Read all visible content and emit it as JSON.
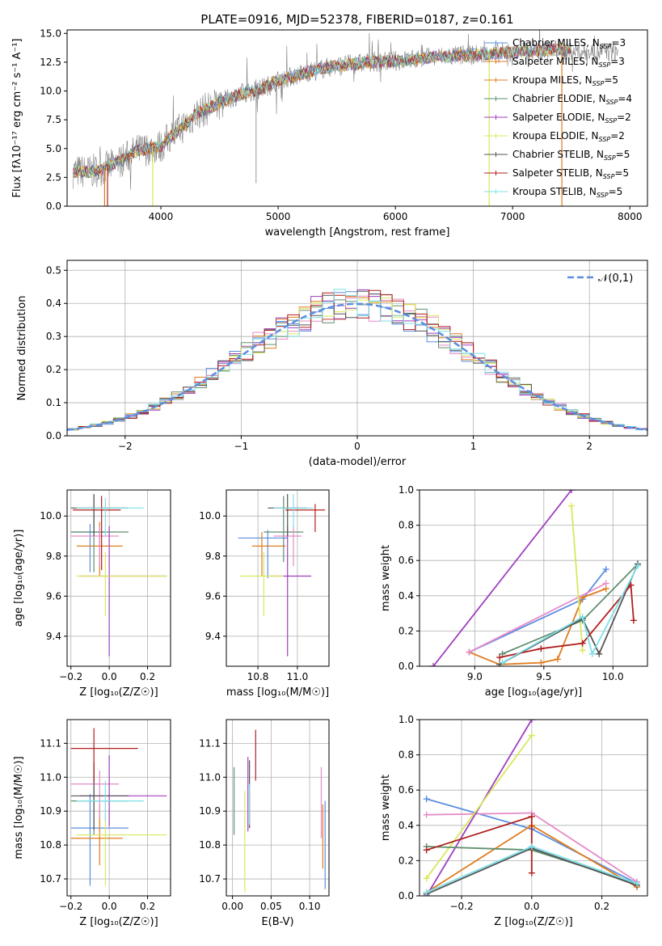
{
  "figure_title": "PLATE=0916, MJD=52378, FIBERID=0187, z=0.161",
  "colors": {
    "blue": "#5b8ee0",
    "orange": "#e07c1e",
    "green": "#4a9a57",
    "pink": "#e58cc8",
    "gray": "#7f7f7f",
    "purple": "#9f3fbf",
    "yellow": "#d9e85c",
    "darkgray": "#555555",
    "red": "#b01f1f",
    "cyan": "#7fe0e8",
    "greenish": "#5f8f6f"
  },
  "chart_data": [
    {
      "id": "spectrum",
      "type": "line",
      "xlabel": "wavelength [Angstrom, rest frame]",
      "ylabel": "Flux [fλ10⁻¹⁷ erg cm⁻² s⁻¹ A⁻¹]",
      "xlim": [
        3200,
        8150
      ],
      "ylim": [
        0,
        15.3
      ],
      "xticks": [
        4000,
        5000,
        6000,
        7000,
        8000
      ],
      "yticks": [
        0.0,
        2.5,
        5.0,
        7.5,
        10.0,
        12.5,
        15.0
      ],
      "ytick_labels": [
        "0.0",
        "2.5",
        "5.0",
        "7.5",
        "10.0",
        "12.5",
        "15.0"
      ],
      "grid": false,
      "legend_position": "top-right",
      "series": [
        {
          "name": "Chabrier MILES, N_SSP=3",
          "color": "#5b8ee0"
        },
        {
          "name": "Salpeter MILES, N_SSP=3",
          "color": "#e07c1e"
        },
        {
          "name": "Kroupa MILES, N_SSP=5",
          "color": "#e07c1e"
        },
        {
          "name": "Chabrier ELODIE, N_SSP=4",
          "color": "#5f8f6f"
        },
        {
          "name": "Salpeter ELODIE, N_SSP=2",
          "color": "#9f3fbf"
        },
        {
          "name": "Kroupa ELODIE, N_SSP=2",
          "color": "#d9e85c"
        },
        {
          "name": "Chabrier STELIB, N_SSP=5",
          "color": "#555555"
        },
        {
          "name": "Salpeter STELIB, N_SSP=5",
          "color": "#b01f1f"
        },
        {
          "name": "Kroupa STELIB, N_SSP=5",
          "color": "#7fe0e8"
        }
      ],
      "continuum": {
        "x": [
          3250,
          3400,
          3500,
          3600,
          3700,
          3800,
          3900,
          4000,
          4100,
          4200,
          4300,
          4400,
          4500,
          4600,
          4700,
          4800,
          4900,
          5000,
          5200,
          5400,
          5600,
          5800,
          6000,
          6200,
          6400,
          6600,
          6800,
          7000,
          7200,
          7400,
          7600,
          7800
        ],
        "y": [
          3.0,
          3.0,
          3.2,
          3.6,
          4.2,
          4.8,
          5.0,
          5.2,
          6.2,
          7.0,
          8.0,
          8.5,
          9.0,
          9.4,
          9.8,
          10.0,
          10.4,
          10.9,
          11.5,
          12.0,
          12.3,
          12.5,
          12.6,
          12.8,
          13.0,
          13.1,
          13.2,
          13.4,
          13.5,
          13.6,
          13.4,
          13.4
        ]
      }
    },
    {
      "id": "residuals",
      "type": "bar",
      "xlabel": "(data-model)/error",
      "ylabel": "Normed distribution",
      "xlim": [
        -2.5,
        2.5
      ],
      "ylim": [
        0,
        0.53
      ],
      "xticks": [
        -2,
        -1,
        0,
        1,
        2
      ],
      "xtick_labels": [
        "−2",
        "−1",
        "0",
        "1",
        "2"
      ],
      "yticks": [
        0.0,
        0.1,
        0.2,
        0.3,
        0.4,
        0.5
      ],
      "ytick_labels": [
        "0.0",
        "0.1",
        "0.2",
        "0.3",
        "0.4",
        "0.5"
      ],
      "grid": true,
      "legend": "𝒩(0,1)",
      "legend_position": "top-right",
      "bin_width": 0.1
    },
    {
      "id": "age_vs_Z",
      "type": "scatter",
      "xlabel": "Z [log₁₀(Z/Z☉)]",
      "ylabel": "age  [log₁₀(age/yr)]",
      "xlim": [
        -0.22,
        0.32
      ],
      "ylim": [
        9.25,
        10.13
      ],
      "xticks": [
        -0.2,
        0.0,
        0.2
      ],
      "xtick_labels": [
        "−0.2",
        "0.0",
        "0.2"
      ],
      "yticks": [
        9.4,
        9.6,
        9.8,
        10.0
      ],
      "ytick_labels": [
        "9.4",
        "9.6",
        "9.8",
        "10.0"
      ],
      "grid": true,
      "points": [
        {
          "color": "#5b8ee0",
          "x": -0.1,
          "xerr": [
            0.1,
            0.08
          ],
          "y": 9.92,
          "yerr": [
            0.2,
            0.04
          ]
        },
        {
          "color": "#e07c1e",
          "x": -0.05,
          "xerr": [
            0.12,
            0.12
          ],
          "y": 9.85,
          "yerr": [
            0.15,
            0.12
          ]
        },
        {
          "color": "#5f8f6f",
          "x": -0.08,
          "xerr": [
            0.12,
            0.18
          ],
          "y": 9.92,
          "yerr": [
            0.2,
            0.18
          ]
        },
        {
          "color": "#e58cc8",
          "x": -0.05,
          "xerr": [
            0.15,
            0.1
          ],
          "y": 9.9,
          "yerr": [
            0.15,
            0.05
          ]
        },
        {
          "color": "#9f3fbf",
          "x": 0.0,
          "xerr": [
            0.15,
            0.3
          ],
          "y": 9.7,
          "yerr": [
            0.4,
            0.25
          ]
        },
        {
          "color": "#d9e85c",
          "x": -0.02,
          "xerr": [
            0.15,
            0.32
          ],
          "y": 9.7,
          "yerr": [
            0.2,
            0.12
          ]
        },
        {
          "color": "#555555",
          "x": -0.08,
          "xerr": [
            0.12,
            0.18
          ],
          "y": 10.04,
          "yerr": [
            0.14,
            0.07
          ]
        },
        {
          "color": "#b01f1f",
          "x": -0.04,
          "xerr": [
            0.15,
            0.1
          ],
          "y": 10.03,
          "yerr": [
            0.3,
            0.07
          ]
        },
        {
          "color": "#7fe0e8",
          "x": -0.02,
          "xerr": [
            0.15,
            0.2
          ],
          "y": 10.04,
          "yerr": [
            0.14,
            0.05
          ]
        }
      ]
    },
    {
      "id": "age_vs_mass",
      "type": "scatter",
      "xlabel": "mass [log₁₀(M/M☉)]",
      "ylabel": "",
      "xlim": [
        10.64,
        11.16
      ],
      "ylim": [
        9.25,
        10.13
      ],
      "xticks": [
        10.8,
        11.0
      ],
      "xtick_labels": [
        "10.8",
        "11.0"
      ],
      "yticks": [
        9.4,
        9.6,
        9.8,
        10.0
      ],
      "ytick_labels": [
        "9.4",
        "9.6",
        "9.8",
        "10.0"
      ],
      "grid": true,
      "points": [
        {
          "color": "#5b8ee0",
          "x": 10.85,
          "xerr": [
            0.15,
            0.1
          ],
          "y": 9.89,
          "yerr": [
            0.2,
            0.04
          ]
        },
        {
          "color": "#e07c1e",
          "x": 10.82,
          "xerr": [
            0.05,
            0.12
          ],
          "y": 9.85,
          "yerr": [
            0.15,
            0.07
          ]
        },
        {
          "color": "#5f8f6f",
          "x": 10.93,
          "xerr": [
            0.1,
            0.1
          ],
          "y": 9.92,
          "yerr": [
            0.15,
            0.18
          ]
        },
        {
          "color": "#e58cc8",
          "x": 10.98,
          "xerr": [
            0.1,
            0.04
          ],
          "y": 9.9,
          "yerr": [
            0.15,
            0.05
          ]
        },
        {
          "color": "#9f3fbf",
          "x": 10.95,
          "xerr": [
            0.09,
            0.12
          ],
          "y": 9.7,
          "yerr": [
            0.4,
            0.25
          ]
        },
        {
          "color": "#d9e85c",
          "x": 10.83,
          "xerr": [
            0.12,
            0.1
          ],
          "y": 9.7,
          "yerr": [
            0.2,
            0.12
          ]
        },
        {
          "color": "#555555",
          "x": 10.95,
          "xerr": [
            0.1,
            0.1
          ],
          "y": 10.04,
          "yerr": [
            0.14,
            0.07
          ]
        },
        {
          "color": "#b01f1f",
          "x": 11.09,
          "xerr": [
            0.15,
            0.05
          ],
          "y": 10.03,
          "yerr": [
            0.11,
            0.03
          ]
        },
        {
          "color": "#7fe0e8",
          "x": 10.98,
          "xerr": [
            0.1,
            0.1
          ],
          "y": 10.04,
          "yerr": [
            0.1,
            0.07
          ]
        }
      ]
    },
    {
      "id": "massweight_vs_age",
      "type": "line",
      "xlabel": "age  [log₁₀(age/yr)]",
      "ylabel": "mass weight",
      "xlim": [
        8.6,
        10.25
      ],
      "ylim": [
        0,
        1.0
      ],
      "xticks": [
        9.0,
        9.5,
        10.0
      ],
      "xtick_labels": [
        "9.0",
        "9.5",
        "10.0"
      ],
      "yticks": [
        0.0,
        0.2,
        0.4,
        0.6,
        0.8,
        1.0
      ],
      "ytick_labels": [
        "0.0",
        "0.2",
        "0.4",
        "0.6",
        "0.8",
        "1.0"
      ],
      "grid": true,
      "series": [
        {
          "color": "#5b8ee0",
          "x": [
            8.96,
            9.78,
            9.95
          ],
          "y": [
            0.08,
            0.38,
            0.55
          ]
        },
        {
          "color": "#e07c1e",
          "x": [
            8.96,
            9.18,
            9.48,
            9.6,
            9.78,
            9.95
          ],
          "y": [
            0.08,
            0.01,
            0.02,
            0.04,
            0.39,
            0.44
          ]
        },
        {
          "color": "#e58cc8",
          "x": [
            8.96,
            9.95
          ],
          "y": [
            0.08,
            0.47
          ]
        },
        {
          "color": "#9f3fbf",
          "x": [
            8.7,
            9.7
          ],
          "y": [
            0.0,
            1.0
          ]
        },
        {
          "color": "#d9e85c",
          "x": [
            9.7,
            9.78
          ],
          "y": [
            0.91,
            0.09
          ]
        },
        {
          "color": "#5f8f6f",
          "x": [
            9.2,
            9.78,
            10.18
          ],
          "y": [
            0.07,
            0.26,
            0.58
          ]
        },
        {
          "color": "#555555",
          "x": [
            9.18,
            9.78,
            9.9,
            10.18
          ],
          "y": [
            0.01,
            0.27,
            0.07,
            0.58
          ]
        },
        {
          "color": "#b01f1f",
          "x": [
            9.18,
            9.48,
            9.78,
            10.13,
            10.15
          ],
          "y": [
            0.05,
            0.1,
            0.13,
            0.46,
            0.26
          ]
        },
        {
          "color": "#7fe0e8",
          "x": [
            9.2,
            9.78,
            9.85,
            10.18
          ],
          "y": [
            0.02,
            0.28,
            0.07,
            0.57
          ]
        }
      ]
    },
    {
      "id": "mass_vs_Z",
      "type": "scatter",
      "xlabel": "Z [log₁₀(Z/Z☉)]",
      "ylabel": "mass [log₁₀(M/M☉)]",
      "xlim": [
        -0.22,
        0.32
      ],
      "ylim": [
        10.65,
        11.17
      ],
      "xticks": [
        -0.2,
        0.0,
        0.2
      ],
      "xtick_labels": [
        "−0.2",
        "0.0",
        "0.2"
      ],
      "yticks": [
        10.7,
        10.8,
        10.9,
        11.0,
        11.1
      ],
      "ytick_labels": [
        "10.7",
        "10.8",
        "10.9",
        "11.0",
        "11.1"
      ],
      "grid": true,
      "points": [
        {
          "color": "#5b8ee0",
          "x": -0.1,
          "xerr": [
            0.1,
            0.2
          ],
          "y": 10.85,
          "yerr": [
            0.17,
            0.1
          ]
        },
        {
          "color": "#e07c1e",
          "x": -0.05,
          "xerr": [
            0.15,
            0.12
          ],
          "y": 10.82,
          "yerr": [
            0.08,
            0.1
          ]
        },
        {
          "color": "#5f8f6f",
          "x": -0.08,
          "xerr": [
            0.12,
            0.18
          ],
          "y": 10.93,
          "yerr": [
            0.1,
            0.1
          ]
        },
        {
          "color": "#e58cc8",
          "x": -0.05,
          "xerr": [
            0.15,
            0.1
          ],
          "y": 10.98,
          "yerr": [
            0.1,
            0.04
          ]
        },
        {
          "color": "#9f3fbf",
          "x": 0.0,
          "xerr": [
            0.15,
            0.3
          ],
          "y": 10.945,
          "yerr": [
            0.09,
            0.12
          ]
        },
        {
          "color": "#d9e85c",
          "x": -0.02,
          "xerr": [
            0.15,
            0.32
          ],
          "y": 10.83,
          "yerr": [
            0.15,
            0.1
          ]
        },
        {
          "color": "#555555",
          "x": -0.08,
          "xerr": [
            0.12,
            0.18
          ],
          "y": 10.945,
          "yerr": [
            0.1,
            0.1
          ]
        },
        {
          "color": "#b01f1f",
          "x": -0.08,
          "xerr": [
            0.12,
            0.23
          ],
          "y": 11.085,
          "yerr": [
            0.1,
            0.06
          ]
        },
        {
          "color": "#7fe0e8",
          "x": -0.02,
          "xerr": [
            0.15,
            0.2
          ],
          "y": 10.93,
          "yerr": [
            0.06,
            0.06
          ]
        }
      ]
    },
    {
      "id": "mass_vs_EBV",
      "type": "scatter",
      "xlabel": "E(B-V)",
      "ylabel": "",
      "xlim": [
        -0.008,
        0.125
      ],
      "ylim": [
        10.65,
        11.17
      ],
      "xticks": [
        0.0,
        0.05,
        0.1
      ],
      "xtick_labels": [
        "0.00",
        "0.05",
        "0.10"
      ],
      "yticks": [
        10.7,
        10.8,
        10.9,
        11.0,
        11.1
      ],
      "ytick_labels": [
        "10.7",
        "10.8",
        "10.9",
        "11.0",
        "11.1"
      ],
      "grid": true,
      "points": [
        {
          "color": "#5b8ee0",
          "x": 0.12,
          "y": 10.8,
          "yerr": [
            0.13,
            0.13
          ]
        },
        {
          "color": "#e07c1e",
          "x": 0.117,
          "y": 10.82,
          "yerr": [
            0.09,
            0.1
          ]
        },
        {
          "color": "#5f8f6f",
          "x": 0.002,
          "y": 10.93,
          "yerr": [
            0.1,
            0.1
          ]
        },
        {
          "color": "#e58cc8",
          "x": 0.115,
          "y": 10.92,
          "yerr": [
            0.1,
            0.11
          ]
        },
        {
          "color": "#9f3fbf",
          "x": 0.02,
          "y": 10.94,
          "yerr": [
            0.1,
            0.12
          ]
        },
        {
          "color": "#d9e85c",
          "x": 0.016,
          "y": 10.81,
          "yerr": [
            0.15,
            0.15
          ]
        },
        {
          "color": "#555555",
          "x": 0.022,
          "y": 10.95,
          "yerr": [
            0.1,
            0.1
          ]
        },
        {
          "color": "#b01f1f",
          "x": 0.03,
          "y": 11.07,
          "yerr": [
            0.08,
            0.07
          ]
        },
        {
          "color": "#7fe0e8",
          "x": 0.022,
          "y": 10.92,
          "yerr": [
            0.06,
            0.06
          ]
        }
      ]
    },
    {
      "id": "massweight_vs_Z",
      "type": "line",
      "xlabel": "Z [log₁₀(Z/Z☉)]",
      "ylabel": "mass weight",
      "xlim": [
        -0.32,
        0.33
      ],
      "ylim": [
        0,
        1.0
      ],
      "xticks": [
        -0.2,
        0.0,
        0.2
      ],
      "xtick_labels": [
        "−0.2",
        "0.0",
        "0.2"
      ],
      "yticks": [
        0.0,
        0.2,
        0.4,
        0.6,
        0.8,
        1.0
      ],
      "ytick_labels": [
        "0.0",
        "0.2",
        "0.4",
        "0.6",
        "0.8",
        "1.0"
      ],
      "grid": true,
      "series": [
        {
          "color": "#5b8ee0",
          "x": [
            -0.3,
            0.0,
            0.3
          ],
          "y": [
            0.55,
            0.38,
            0.07
          ]
        },
        {
          "color": "#e07c1e",
          "x": [
            -0.3,
            0.0,
            0.3
          ],
          "y": [
            0.02,
            0.4,
            0.05
          ]
        },
        {
          "color": "#e58cc8",
          "x": [
            -0.3,
            0.0,
            0.3
          ],
          "y": [
            0.46,
            0.47,
            0.08
          ]
        },
        {
          "color": "#9f3fbf",
          "x": [
            -0.3,
            0.0
          ],
          "y": [
            0.0,
            1.0
          ]
        },
        {
          "color": "#d9e85c",
          "x": [
            -0.3,
            0.0
          ],
          "y": [
            0.1,
            0.91
          ]
        },
        {
          "color": "#5f8f6f",
          "x": [
            -0.3,
            0.0,
            0.3
          ],
          "y": [
            0.28,
            0.26,
            0.07
          ]
        },
        {
          "color": "#555555",
          "x": [
            -0.3,
            0.0,
            0.3
          ],
          "y": [
            0.01,
            0.27,
            0.06
          ]
        },
        {
          "color": "#b01f1f",
          "x": [
            -0.3,
            0.0,
            0.0
          ],
          "y": [
            0.26,
            0.45,
            0.13
          ]
        },
        {
          "color": "#7fe0e8",
          "x": [
            -0.3,
            0.0,
            0.3
          ],
          "y": [
            0.02,
            0.28,
            0.07
          ]
        }
      ]
    }
  ]
}
